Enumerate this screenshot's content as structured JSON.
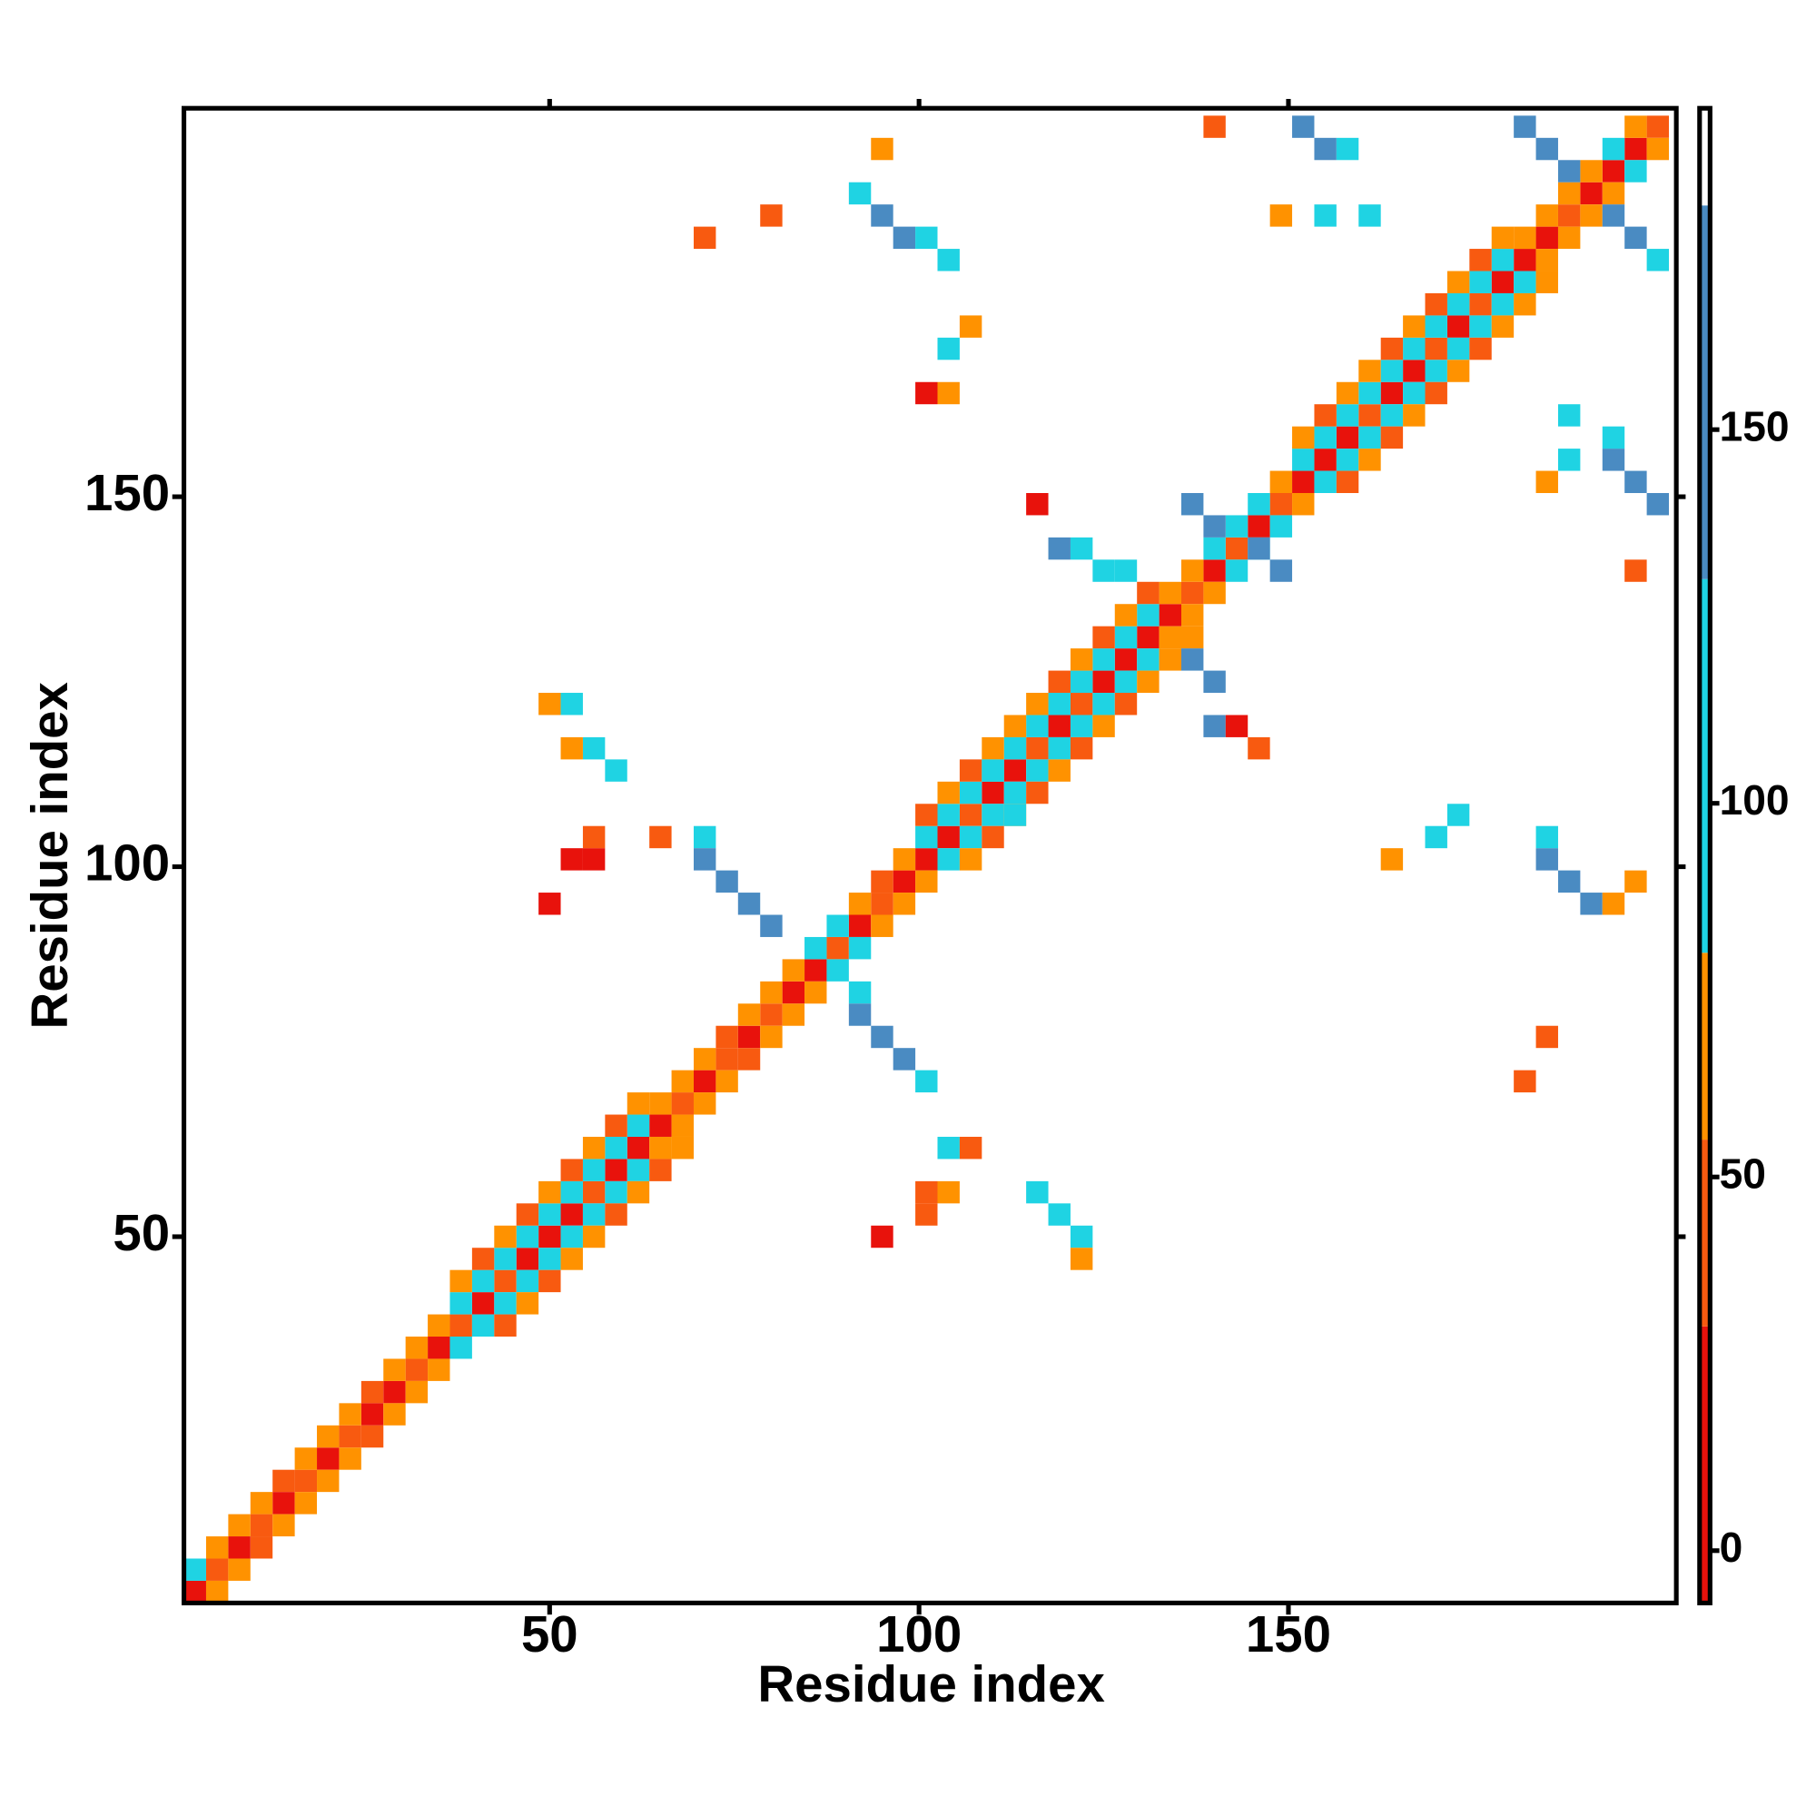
{
  "chart_data": {
    "type": "heatmap",
    "xlabel": "Residue index",
    "ylabel": "Residue index",
    "xlim": [
      0.5,
      202.5
    ],
    "ylim": [
      0.5,
      202.5
    ],
    "xticks": [
      50,
      100,
      150
    ],
    "yticks": [
      50,
      100,
      150
    ],
    "clim": [
      -7,
      193
    ],
    "cticks": [
      0,
      50,
      100,
      150
    ],
    "color_bins": [
      -7,
      30,
      55,
      80,
      130,
      180,
      193
    ],
    "colors": [
      "#e8120c",
      "#f85a10",
      "#ff9200",
      "#1fd3e3",
      "#4a8bc2",
      "#ffffff"
    ],
    "x": [
      2,
      5,
      8,
      11,
      14,
      17,
      20,
      23,
      26,
      29,
      32,
      35,
      38,
      41,
      44,
      47,
      50,
      53,
      56,
      59,
      62,
      65,
      68,
      71,
      74,
      77,
      80,
      83,
      86,
      89,
      92,
      95,
      98,
      101,
      104,
      107,
      110,
      113,
      116,
      119,
      122,
      125,
      128,
      131,
      134,
      137,
      140,
      143,
      146,
      149,
      152,
      155,
      158,
      161,
      164,
      167,
      170,
      173,
      176,
      179,
      182,
      185,
      188,
      191,
      194,
      197,
      200,
      2,
      5,
      8,
      11,
      14,
      17,
      20,
      23,
      26,
      29,
      32,
      35,
      38,
      41,
      44,
      47,
      50,
      53,
      56,
      59,
      62,
      65,
      68,
      71,
      74,
      77,
      80,
      83,
      86,
      89,
      92,
      95,
      98,
      101,
      104,
      107,
      110,
      113,
      116,
      119,
      122,
      125,
      128,
      131,
      134,
      137,
      140,
      143,
      146,
      149,
      152,
      155,
      158,
      161,
      164,
      167,
      170,
      173,
      176,
      179,
      182,
      185,
      188,
      191,
      194,
      197,
      5,
      8,
      11,
      14,
      17,
      20,
      23,
      26,
      29,
      32,
      35,
      38,
      41,
      44,
      47,
      50,
      53,
      56,
      59,
      62,
      65,
      68,
      71,
      74,
      77,
      80,
      83,
      86,
      89,
      92,
      95,
      98,
      101,
      104,
      107,
      110,
      113,
      116,
      119,
      122,
      125,
      128,
      131,
      134,
      137,
      140,
      143,
      146,
      149,
      152,
      155,
      158,
      161,
      164,
      167,
      170,
      173,
      176,
      179,
      182,
      185,
      188,
      191,
      194,
      197,
      200,
      38,
      41,
      44,
      47,
      50,
      53,
      56,
      59,
      62,
      101,
      104,
      107,
      110,
      113,
      116,
      119,
      122,
      125,
      128,
      131,
      152,
      155,
      158,
      161,
      164,
      167,
      170,
      173,
      176,
      179,
      44,
      47,
      50,
      53,
      56,
      59,
      62,
      65,
      68,
      107,
      110,
      113,
      116,
      119,
      122,
      125,
      128,
      131,
      134,
      137,
      158,
      161,
      164,
      167,
      170,
      173,
      176,
      179,
      182,
      185,
      71,
      71,
      74,
      77,
      80,
      92,
      92,
      95,
      98,
      101,
      137,
      140,
      146,
      149,
      182,
      185,
      188,
      194,
      197,
      200,
      152,
      155,
      158,
      92,
      95,
      98,
      101,
      104,
      194,
      197,
      200,
      194,
      185,
      188,
      191,
      185,
      137,
      140,
      140,
      143,
      146,
      122,
      125,
      128,
      116,
      119,
      122,
      122,
      101,
      104,
      104,
      107,
      101,
      95,
      50,
      53,
      56,
      59,
      53,
      53,
      56,
      56,
      65,
      50,
      95,
      104,
      107,
      101,
      104,
      140,
      149,
      155,
      161,
      80,
      71,
      185,
      188,
      188,
      197,
      164,
      170,
      173,
      194,
      197,
      185,
      182,
      116,
      119,
      113,
      110
    ],
    "y": [
      2,
      5,
      8,
      11,
      14,
      17,
      20,
      23,
      26,
      29,
      32,
      35,
      38,
      41,
      44,
      47,
      50,
      53,
      56,
      59,
      62,
      65,
      68,
      71,
      74,
      77,
      80,
      83,
      86,
      89,
      92,
      95,
      98,
      101,
      104,
      107,
      110,
      113,
      116,
      119,
      122,
      125,
      128,
      131,
      134,
      137,
      140,
      143,
      146,
      149,
      152,
      155,
      158,
      161,
      164,
      167,
      170,
      173,
      176,
      179,
      182,
      185,
      188,
      191,
      194,
      197,
      200,
      5,
      8,
      11,
      14,
      17,
      20,
      23,
      26,
      29,
      32,
      35,
      38,
      41,
      44,
      47,
      50,
      53,
      56,
      59,
      62,
      65,
      68,
      71,
      74,
      77,
      80,
      83,
      86,
      89,
      92,
      95,
      98,
      101,
      104,
      107,
      110,
      113,
      116,
      119,
      122,
      125,
      128,
      131,
      134,
      137,
      140,
      143,
      146,
      149,
      152,
      155,
      158,
      161,
      164,
      167,
      170,
      173,
      176,
      179,
      182,
      185,
      188,
      191,
      194,
      197,
      200,
      2,
      5,
      8,
      11,
      14,
      17,
      20,
      23,
      26,
      29,
      32,
      35,
      38,
      41,
      44,
      47,
      50,
      53,
      56,
      59,
      62,
      65,
      68,
      71,
      74,
      77,
      80,
      83,
      86,
      89,
      92,
      95,
      98,
      101,
      104,
      107,
      110,
      113,
      116,
      119,
      122,
      125,
      128,
      131,
      134,
      137,
      140,
      143,
      146,
      149,
      152,
      155,
      158,
      161,
      164,
      167,
      170,
      173,
      176,
      179,
      182,
      185,
      188,
      191,
      194,
      197,
      44,
      47,
      50,
      53,
      56,
      59,
      62,
      65,
      68,
      107,
      110,
      113,
      116,
      119,
      122,
      125,
      128,
      131,
      134,
      137,
      158,
      161,
      164,
      167,
      170,
      173,
      176,
      179,
      182,
      185,
      38,
      41,
      44,
      47,
      50,
      53,
      56,
      59,
      62,
      101,
      104,
      107,
      110,
      113,
      116,
      119,
      122,
      125,
      128,
      131,
      152,
      155,
      158,
      161,
      164,
      167,
      170,
      173,
      176,
      179,
      104,
      101,
      98,
      95,
      92,
      83,
      80,
      77,
      74,
      71,
      149,
      146,
      143,
      140,
      200,
      197,
      194,
      188,
      185,
      182,
      200,
      197,
      197,
      191,
      188,
      185,
      185,
      182,
      155,
      152,
      149,
      158,
      101,
      98,
      95,
      104,
      128,
      125,
      119,
      119,
      116,
      143,
      140,
      140,
      56,
      53,
      50,
      47,
      56,
      56,
      62,
      62,
      53,
      50,
      122,
      122,
      116,
      113,
      116,
      101,
      101,
      104,
      104,
      95,
      197,
      170,
      173,
      164,
      164,
      200,
      188,
      188,
      188,
      188,
      185,
      152,
      155,
      161,
      140,
      101,
      104,
      107,
      95,
      98,
      77,
      71,
      149,
      143,
      107,
      113
    ],
    "values": [
      10,
      30,
      5,
      40,
      15,
      35,
      10,
      45,
      20,
      5,
      38,
      12,
      30,
      8,
      42,
      18,
      25,
      10,
      35,
      5,
      28,
      15,
      40,
      10,
      32,
      8,
      45,
      20,
      12,
      38,
      5,
      30,
      15,
      25,
      10,
      42,
      18,
      8,
      35,
      12,
      40,
      5,
      28,
      20,
      10,
      36,
      15,
      30,
      8,
      44,
      12,
      25,
      5,
      38,
      18,
      10,
      32,
      15,
      40,
      8,
      28,
      12,
      35,
      5,
      22,
      10,
      30,
      95,
      65,
      55,
      70,
      45,
      68,
      60,
      72,
      50,
      66,
      62,
      70,
      100,
      95,
      105,
      98,
      110,
      92,
      100,
      96,
      102,
      65,
      55,
      70,
      48,
      66,
      60,
      72,
      100,
      105,
      68,
      45,
      70,
      98,
      102,
      95,
      110,
      100,
      92,
      104,
      98,
      106,
      95,
      100,
      62,
      70,
      95,
      100,
      90,
      65,
      100,
      96,
      104,
      110,
      92,
      100,
      98,
      105,
      95,
      102,
      68,
      72,
      60,
      66,
      95,
      70,
      60,
      70,
      48,
      65,
      72,
      55,
      66,
      45,
      70,
      62,
      68,
      95,
      100,
      92,
      105,
      98,
      102,
      110,
      96,
      100,
      65,
      70,
      55,
      68,
      50,
      72,
      62,
      70,
      95,
      100,
      66,
      60,
      72,
      100,
      95,
      104,
      98,
      110,
      92,
      100,
      102,
      96,
      98,
      65,
      70,
      60,
      100,
      95,
      100,
      70,
      98,
      105,
      92,
      100,
      110,
      96,
      102,
      98,
      104,
      95,
      70,
      66,
      62,
      72,
      100,
      68,
      60,
      45,
      68,
      40,
      65,
      50,
      70,
      45,
      62,
      48,
      66,
      40,
      70,
      55,
      62,
      45,
      68,
      50,
      64,
      42,
      66,
      45,
      60,
      70,
      40,
      68,
      52,
      65,
      48,
      62,
      45,
      66,
      40,
      62,
      70,
      48,
      64,
      52,
      68,
      62,
      42,
      70,
      50,
      66,
      45,
      60,
      38,
      68,
      55,
      64,
      40,
      68,
      50,
      62,
      45,
      70,
      48,
      66,
      55,
      60,
      110,
      150,
      150,
      145,
      150,
      105,
      150,
      145,
      150,
      110,
      150,
      145,
      150,
      145,
      150,
      145,
      150,
      150,
      145,
      115,
      150,
      145,
      110,
      110,
      150,
      145,
      110,
      105,
      150,
      145,
      150,
      110,
      150,
      145,
      150,
      110,
      150,
      145,
      150,
      15,
      40,
      105,
      110,
      100,
      105,
      100,
      110,
      70,
      45,
      65,
      95,
      45,
      35,
      10,
      70,
      105,
      100,
      110,
      70,
      15,
      20,
      45,
      40,
      10,
      70,
      100,
      70,
      15,
      65,
      45,
      70,
      105,
      110,
      45,
      40,
      70,
      105,
      110,
      40,
      70,
      105,
      110,
      65,
      60,
      40,
      45,
      20,
      150,
      100,
      95
    ]
  }
}
